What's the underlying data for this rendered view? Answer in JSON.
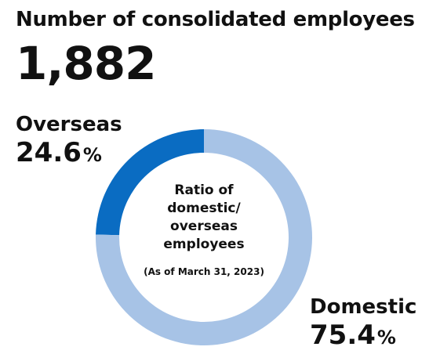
{
  "header": {
    "title": "Number of consolidated employees",
    "total": "1,882"
  },
  "center_caption": {
    "lines": [
      "Ratio of",
      "domestic/",
      "overseas",
      "employees"
    ],
    "note": "(As of March 31, 2023)"
  },
  "colors": {
    "domestic": "#a7c3e6",
    "overseas": "#0a6cc2"
  },
  "chart_data": {
    "type": "pie",
    "variant": "donut",
    "title": "Number of consolidated employees",
    "total": 1882,
    "center_label": "Ratio of domestic/ overseas employees",
    "note": "(As of March 31, 2023)",
    "slices": [
      {
        "name": "Overseas",
        "value": 24.6,
        "unit": "%",
        "color": "#0a6cc2"
      },
      {
        "name": "Domestic",
        "value": 75.4,
        "unit": "%",
        "color": "#a7c3e6"
      }
    ]
  }
}
